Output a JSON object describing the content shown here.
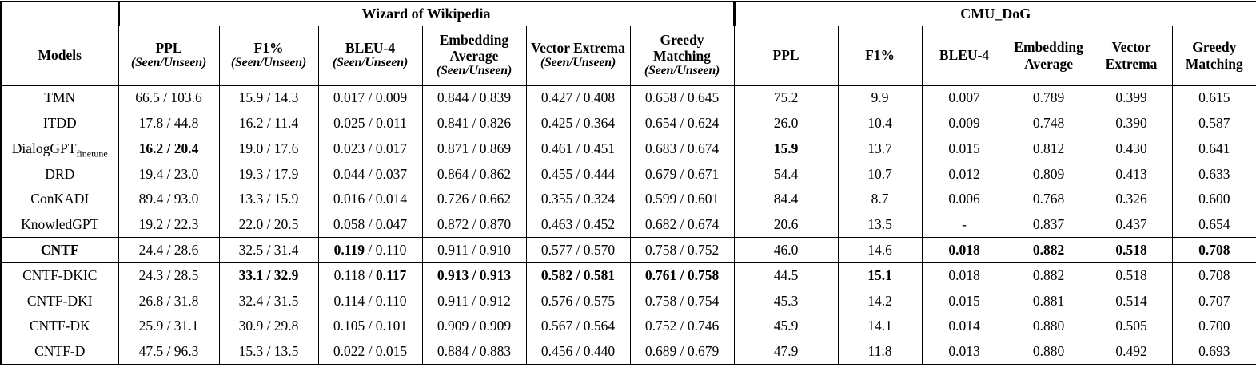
{
  "colors": {
    "text": "#000000",
    "border": "#000000",
    "background": "#ffffff"
  },
  "table": {
    "groups": [
      {
        "label": "",
        "span": 1
      },
      {
        "label": "Wizard of Wikipedia",
        "span": 6
      },
      {
        "label": "CMU_DoG",
        "span": 6
      }
    ],
    "columns": [
      {
        "title": "Models",
        "subtitle": ""
      },
      {
        "title": "PPL",
        "subtitle": "(Seen/Unseen)"
      },
      {
        "title": "F1%",
        "subtitle": "(Seen/Unseen)"
      },
      {
        "title": "BLEU-4",
        "subtitle": "(Seen/Unseen)"
      },
      {
        "title": "Embedding Average",
        "subtitle": "(Seen/Unseen)"
      },
      {
        "title": "Vector Extrema",
        "subtitle": "(Seen/Unseen)"
      },
      {
        "title": "Greedy Matching",
        "subtitle": "(Seen/Unseen)"
      },
      {
        "title": "PPL",
        "subtitle": ""
      },
      {
        "title": "F1%",
        "subtitle": ""
      },
      {
        "title": "BLEU-4",
        "subtitle": ""
      },
      {
        "title": "Embedding Average",
        "subtitle": ""
      },
      {
        "title": "Vector Extrema",
        "subtitle": ""
      },
      {
        "title": "Greedy Matching",
        "subtitle": ""
      }
    ],
    "sections": [
      {
        "name": "baselines",
        "rows": [
          {
            "model": {
              "name": "TMN",
              "sub": "",
              "bold": false
            },
            "cells": [
              [
                {
                  "t": "66.5 / 103.6"
                }
              ],
              [
                {
                  "t": "15.9 / 14.3"
                }
              ],
              [
                {
                  "t": "0.017 / 0.009"
                }
              ],
              [
                {
                  "t": "0.844 / 0.839"
                }
              ],
              [
                {
                  "t": "0.427 / 0.408"
                }
              ],
              [
                {
                  "t": "0.658 / 0.645"
                }
              ],
              [
                {
                  "t": "75.2"
                }
              ],
              [
                {
                  "t": "9.9"
                }
              ],
              [
                {
                  "t": "0.007"
                }
              ],
              [
                {
                  "t": "0.789"
                }
              ],
              [
                {
                  "t": "0.399"
                }
              ],
              [
                {
                  "t": "0.615"
                }
              ]
            ]
          },
          {
            "model": {
              "name": "ITDD",
              "sub": "",
              "bold": false
            },
            "cells": [
              [
                {
                  "t": "17.8 / 44.8"
                }
              ],
              [
                {
                  "t": "16.2 / 11.4"
                }
              ],
              [
                {
                  "t": "0.025 / 0.011"
                }
              ],
              [
                {
                  "t": "0.841 / 0.826"
                }
              ],
              [
                {
                  "t": "0.425 / 0.364"
                }
              ],
              [
                {
                  "t": "0.654 / 0.624"
                }
              ],
              [
                {
                  "t": "26.0"
                }
              ],
              [
                {
                  "t": "10.4"
                }
              ],
              [
                {
                  "t": "0.009"
                }
              ],
              [
                {
                  "t": "0.748"
                }
              ],
              [
                {
                  "t": "0.390"
                }
              ],
              [
                {
                  "t": "0.587"
                }
              ]
            ]
          },
          {
            "model": {
              "name": "DialogGPT",
              "sub": "finetune",
              "bold": false
            },
            "cells": [
              [
                {
                  "t": "16.2 / 20.4",
                  "b": true
                }
              ],
              [
                {
                  "t": "19.0 / 17.6"
                }
              ],
              [
                {
                  "t": "0.023 / 0.017"
                }
              ],
              [
                {
                  "t": "0.871 / 0.869"
                }
              ],
              [
                {
                  "t": "0.461 / 0.451"
                }
              ],
              [
                {
                  "t": "0.683 / 0.674"
                }
              ],
              [
                {
                  "t": "15.9",
                  "b": true
                }
              ],
              [
                {
                  "t": "13.7"
                }
              ],
              [
                {
                  "t": "0.015"
                }
              ],
              [
                {
                  "t": "0.812"
                }
              ],
              [
                {
                  "t": "0.430"
                }
              ],
              [
                {
                  "t": "0.641"
                }
              ]
            ]
          },
          {
            "model": {
              "name": "DRD",
              "sub": "",
              "bold": false
            },
            "cells": [
              [
                {
                  "t": "19.4 / 23.0"
                }
              ],
              [
                {
                  "t": "19.3 / 17.9"
                }
              ],
              [
                {
                  "t": "0.044 / 0.037"
                }
              ],
              [
                {
                  "t": "0.864 / 0.862"
                }
              ],
              [
                {
                  "t": "0.455 / 0.444"
                }
              ],
              [
                {
                  "t": "0.679 / 0.671"
                }
              ],
              [
                {
                  "t": "54.4"
                }
              ],
              [
                {
                  "t": "10.7"
                }
              ],
              [
                {
                  "t": "0.012"
                }
              ],
              [
                {
                  "t": "0.809"
                }
              ],
              [
                {
                  "t": "0.413"
                }
              ],
              [
                {
                  "t": "0.633"
                }
              ]
            ]
          },
          {
            "model": {
              "name": "ConKADI",
              "sub": "",
              "bold": false
            },
            "cells": [
              [
                {
                  "t": "89.4 / 93.0"
                }
              ],
              [
                {
                  "t": "13.3 / 15.9"
                }
              ],
              [
                {
                  "t": "0.016 / 0.014"
                }
              ],
              [
                {
                  "t": "0.726 / 0.662"
                }
              ],
              [
                {
                  "t": "0.355 / 0.324"
                }
              ],
              [
                {
                  "t": "0.599 / 0.601"
                }
              ],
              [
                {
                  "t": "84.4"
                }
              ],
              [
                {
                  "t": "8.7"
                }
              ],
              [
                {
                  "t": "0.006"
                }
              ],
              [
                {
                  "t": "0.768"
                }
              ],
              [
                {
                  "t": "0.326"
                }
              ],
              [
                {
                  "t": "0.600"
                }
              ]
            ]
          },
          {
            "model": {
              "name": "KnowledGPT",
              "sub": "",
              "bold": false
            },
            "cells": [
              [
                {
                  "t": "19.2 / 22.3"
                }
              ],
              [
                {
                  "t": "22.0 / 20.5"
                }
              ],
              [
                {
                  "t": "0.058 / 0.047"
                }
              ],
              [
                {
                  "t": "0.872 / 0.870"
                }
              ],
              [
                {
                  "t": "0.463 / 0.452"
                }
              ],
              [
                {
                  "t": "0.682 / 0.674"
                }
              ],
              [
                {
                  "t": "20.6"
                }
              ],
              [
                {
                  "t": "13.5"
                }
              ],
              [
                {
                  "t": "-"
                }
              ],
              [
                {
                  "t": "0.837"
                }
              ],
              [
                {
                  "t": "0.437"
                }
              ],
              [
                {
                  "t": "0.654"
                }
              ]
            ]
          }
        ]
      },
      {
        "name": "proposed",
        "rows": [
          {
            "model": {
              "name": "CNTF",
              "sub": "",
              "bold": true
            },
            "cells": [
              [
                {
                  "t": "24.4 / 28.6"
                }
              ],
              [
                {
                  "t": "32.5 / 31.4"
                }
              ],
              [
                {
                  "t": "0.119",
                  "b": true
                },
                {
                  "t": " / 0.110"
                }
              ],
              [
                {
                  "t": "0.911 / 0.910"
                }
              ],
              [
                {
                  "t": "0.577 / 0.570"
                }
              ],
              [
                {
                  "t": "0.758 / 0.752"
                }
              ],
              [
                {
                  "t": "46.0"
                }
              ],
              [
                {
                  "t": "14.6"
                }
              ],
              [
                {
                  "t": "0.018",
                  "b": true
                }
              ],
              [
                {
                  "t": "0.882",
                  "b": true
                }
              ],
              [
                {
                  "t": "0.518",
                  "b": true
                }
              ],
              [
                {
                  "t": "0.708",
                  "b": true
                }
              ]
            ]
          }
        ]
      },
      {
        "name": "ablations",
        "rows": [
          {
            "model": {
              "name": "CNTF-DKIC",
              "sub": "",
              "bold": false
            },
            "cells": [
              [
                {
                  "t": "24.3 / 28.5"
                }
              ],
              [
                {
                  "t": "33.1 / 32.9",
                  "b": true
                }
              ],
              [
                {
                  "t": "0.118 / "
                },
                {
                  "t": "0.117",
                  "b": true
                }
              ],
              [
                {
                  "t": "0.913 / 0.913",
                  "b": true
                }
              ],
              [
                {
                  "t": "0.582 / 0.581",
                  "b": true
                }
              ],
              [
                {
                  "t": "0.761 / 0.758",
                  "b": true
                }
              ],
              [
                {
                  "t": "44.5"
                }
              ],
              [
                {
                  "t": "15.1",
                  "b": true
                }
              ],
              [
                {
                  "t": "0.018"
                }
              ],
              [
                {
                  "t": "0.882"
                }
              ],
              [
                {
                  "t": "0.518"
                }
              ],
              [
                {
                  "t": "0.708"
                }
              ]
            ]
          },
          {
            "model": {
              "name": "CNTF-DKI",
              "sub": "",
              "bold": false
            },
            "cells": [
              [
                {
                  "t": "26.8 / 31.8"
                }
              ],
              [
                {
                  "t": "32.4 / 31.5"
                }
              ],
              [
                {
                  "t": "0.114 / 0.110"
                }
              ],
              [
                {
                  "t": "0.911 / 0.912"
                }
              ],
              [
                {
                  "t": "0.576 / 0.575"
                }
              ],
              [
                {
                  "t": "0.758 / 0.754"
                }
              ],
              [
                {
                  "t": "45.3"
                }
              ],
              [
                {
                  "t": "14.2"
                }
              ],
              [
                {
                  "t": "0.015"
                }
              ],
              [
                {
                  "t": "0.881"
                }
              ],
              [
                {
                  "t": "0.514"
                }
              ],
              [
                {
                  "t": "0.707"
                }
              ]
            ]
          },
          {
            "model": {
              "name": "CNTF-DK",
              "sub": "",
              "bold": false
            },
            "cells": [
              [
                {
                  "t": "25.9 / 31.1"
                }
              ],
              [
                {
                  "t": "30.9 / 29.8"
                }
              ],
              [
                {
                  "t": "0.105 / 0.101"
                }
              ],
              [
                {
                  "t": "0.909 / 0.909"
                }
              ],
              [
                {
                  "t": "0.567 / 0.564"
                }
              ],
              [
                {
                  "t": "0.752 / 0.746"
                }
              ],
              [
                {
                  "t": "45.9"
                }
              ],
              [
                {
                  "t": "14.1"
                }
              ],
              [
                {
                  "t": "0.014"
                }
              ],
              [
                {
                  "t": "0.880"
                }
              ],
              [
                {
                  "t": "0.505"
                }
              ],
              [
                {
                  "t": "0.700"
                }
              ]
            ]
          },
          {
            "model": {
              "name": "CNTF-D",
              "sub": "",
              "bold": false
            },
            "cells": [
              [
                {
                  "t": "47.5 / 96.3"
                }
              ],
              [
                {
                  "t": "15.3 / 13.5"
                }
              ],
              [
                {
                  "t": "0.022 / 0.015"
                }
              ],
              [
                {
                  "t": "0.884 / 0.883"
                }
              ],
              [
                {
                  "t": "0.456 / 0.440"
                }
              ],
              [
                {
                  "t": "0.689 / 0.679"
                }
              ],
              [
                {
                  "t": "47.9"
                }
              ],
              [
                {
                  "t": "11.8"
                }
              ],
              [
                {
                  "t": "0.013"
                }
              ],
              [
                {
                  "t": "0.880"
                }
              ],
              [
                {
                  "t": "0.492"
                }
              ],
              [
                {
                  "t": "0.693"
                }
              ]
            ]
          }
        ]
      }
    ]
  }
}
